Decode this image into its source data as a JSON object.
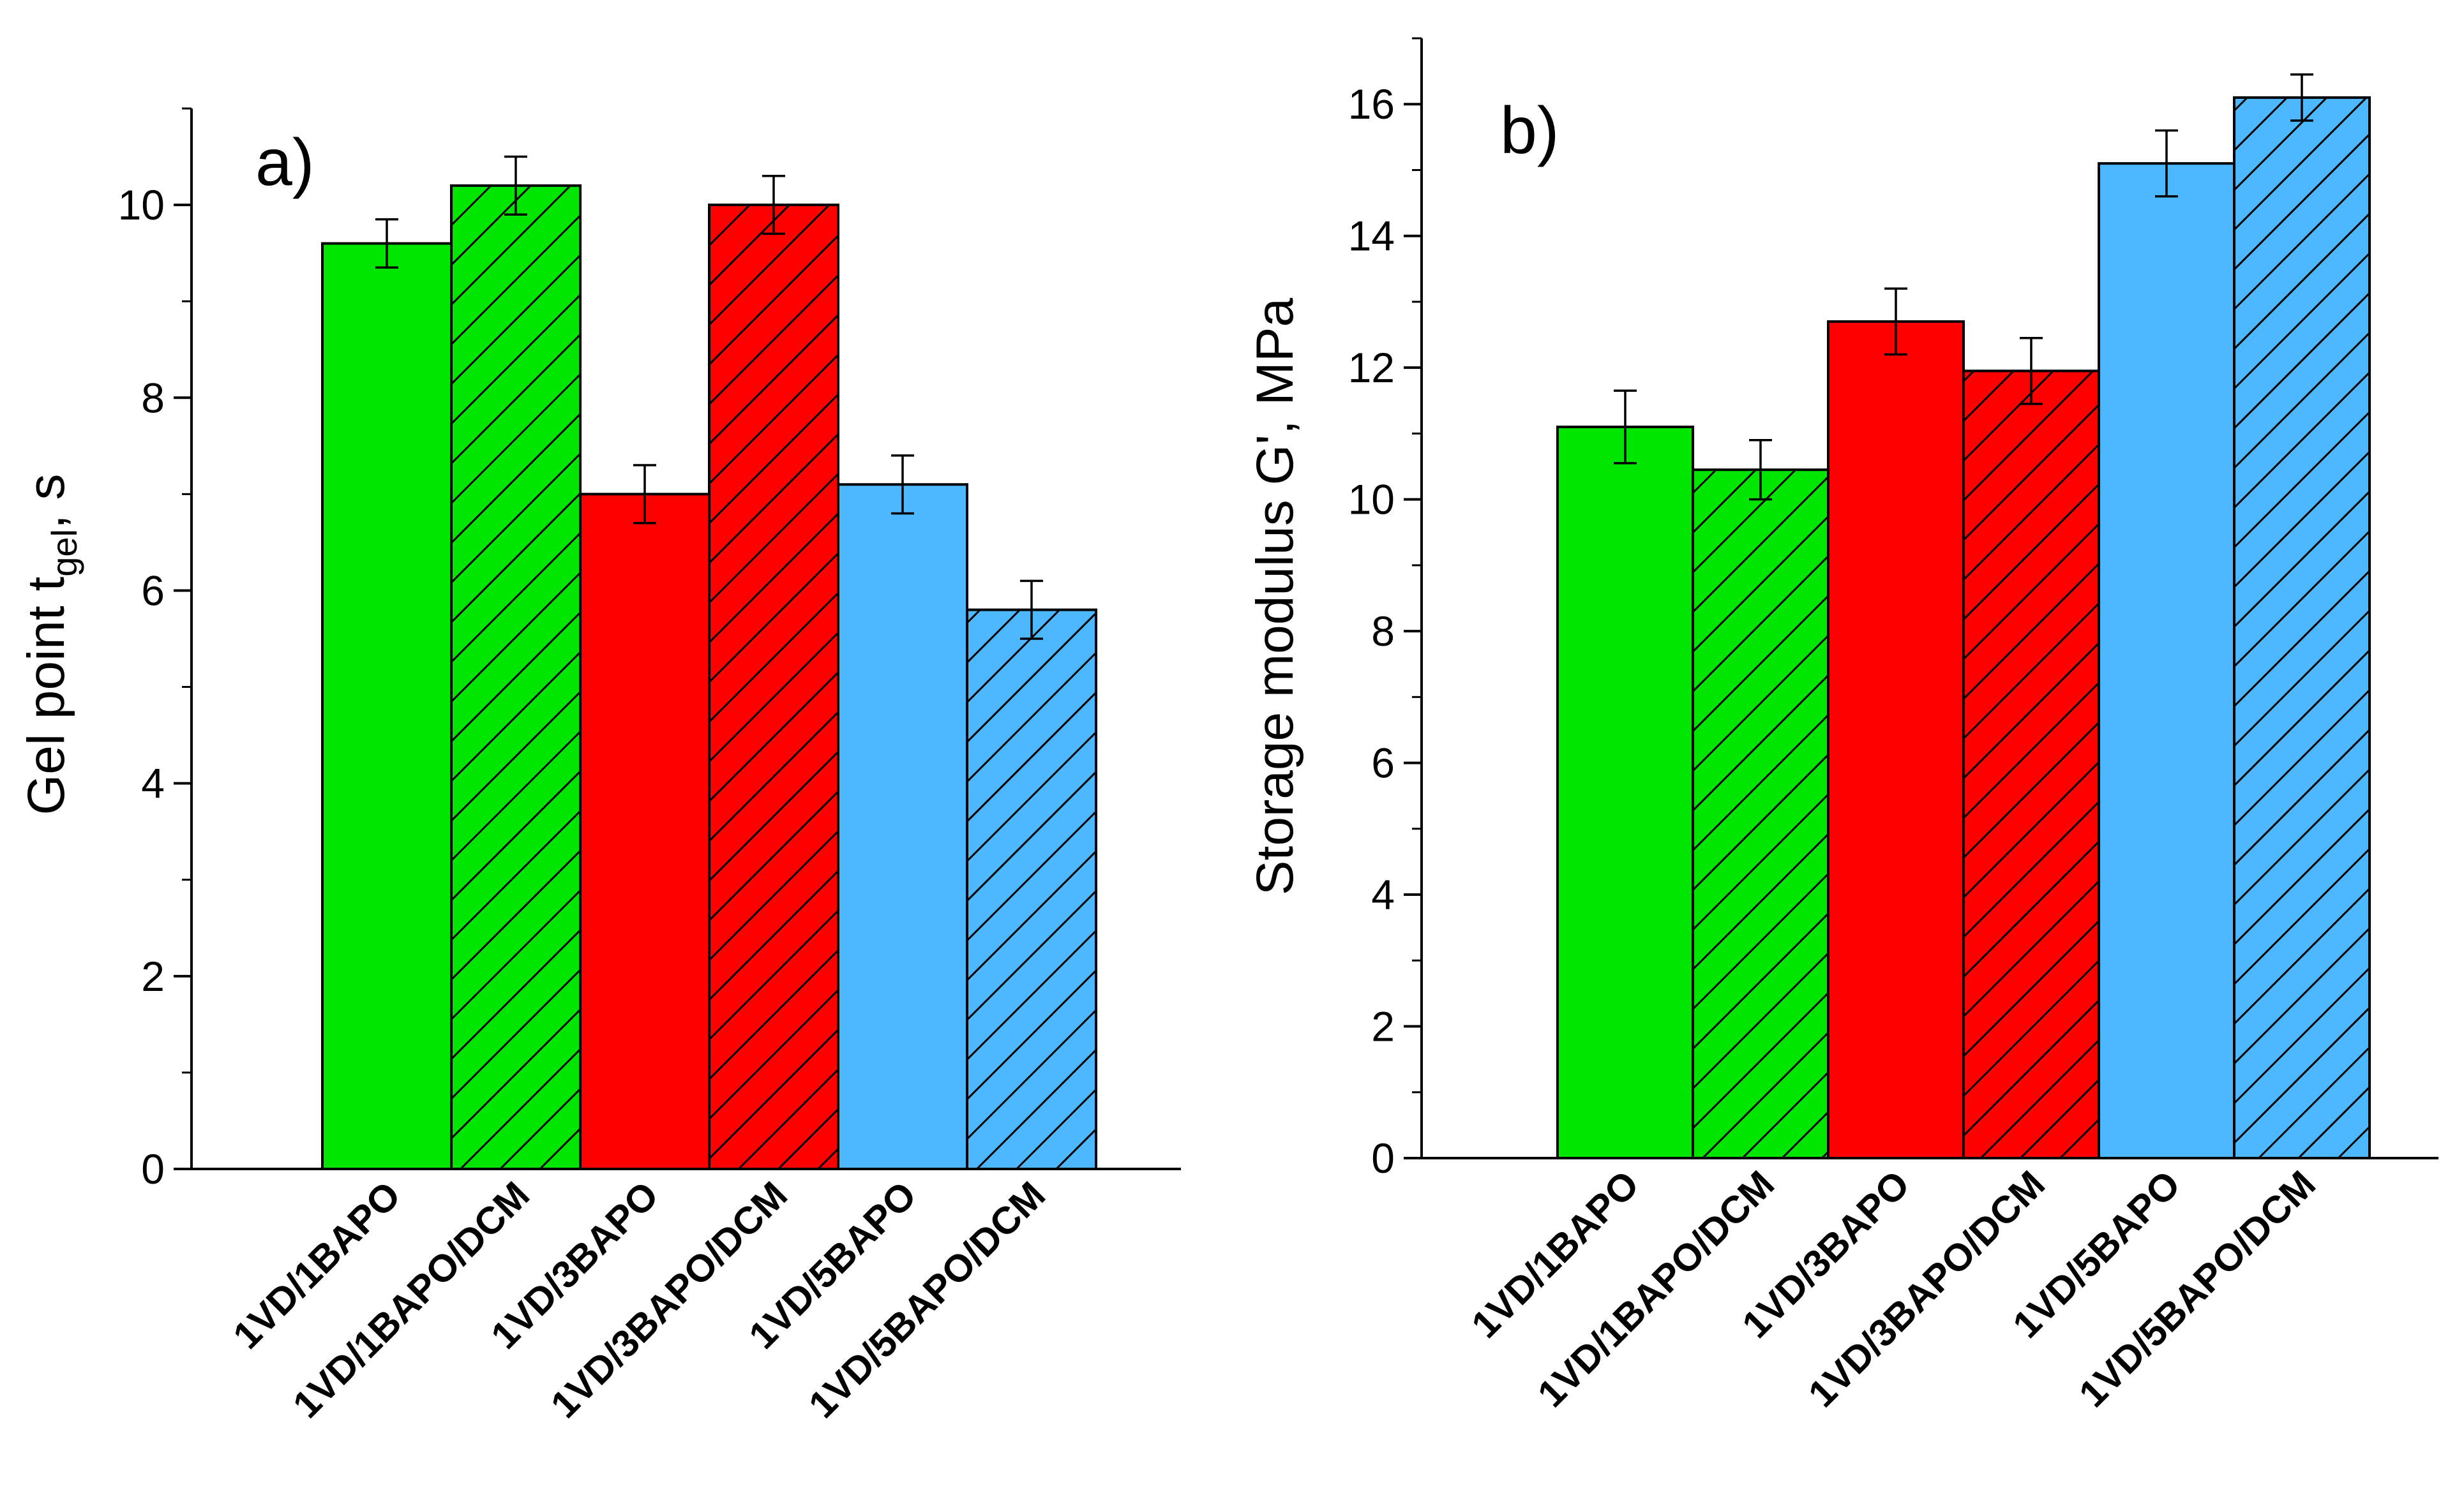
{
  "chart_data": [
    {
      "type": "bar",
      "panel": "a)",
      "ylabel": {
        "main": "Gel point t",
        "sub": "gel",
        "unit": ", s"
      },
      "ylim": [
        0,
        11
      ],
      "yticks": [
        "0",
        "2",
        "4",
        "6",
        "8",
        "10"
      ],
      "categories": [
        "1VD/1BAPO",
        "1VD/1BAPO/DCM",
        "1VD/3BAPO",
        "1VD/3BAPO/DCM",
        "1VD/5BAPO",
        "1VD/5BAPO/DCM"
      ],
      "values": [
        9.6,
        10.2,
        7.0,
        10.0,
        7.1,
        5.8
      ],
      "errors": [
        0.25,
        0.3,
        0.3,
        0.3,
        0.3,
        0.3
      ],
      "colors": [
        "#00e600",
        "#00e600",
        "#ff0000",
        "#ff0000",
        "#4db8ff",
        "#4db8ff"
      ],
      "hatched": [
        false,
        true,
        false,
        true,
        false,
        true
      ],
      "grid": false
    },
    {
      "type": "bar",
      "panel": "b)",
      "ylabel": {
        "main": "Storage modulus G', MPa"
      },
      "ylim": [
        0,
        17
      ],
      "yticks": [
        "0",
        "2",
        "4",
        "6",
        "8",
        "10",
        "12",
        "14",
        "16"
      ],
      "categories": [
        "1VD/1BAPO",
        "1VD/1BAPO/DCM",
        "1VD/3BAPO",
        "1VD/3BAPO/DCM",
        "1VD/5BAPO",
        "1VD/5BAPO/DCM"
      ],
      "values": [
        11.1,
        10.45,
        12.7,
        11.95,
        15.1,
        16.1
      ],
      "errors": [
        0.55,
        0.45,
        0.5,
        0.5,
        0.5,
        0.35
      ],
      "colors": [
        "#00e600",
        "#00e600",
        "#ff0000",
        "#ff0000",
        "#4db8ff",
        "#4db8ff"
      ],
      "hatched": [
        false,
        true,
        false,
        true,
        false,
        true
      ],
      "grid": false
    }
  ]
}
